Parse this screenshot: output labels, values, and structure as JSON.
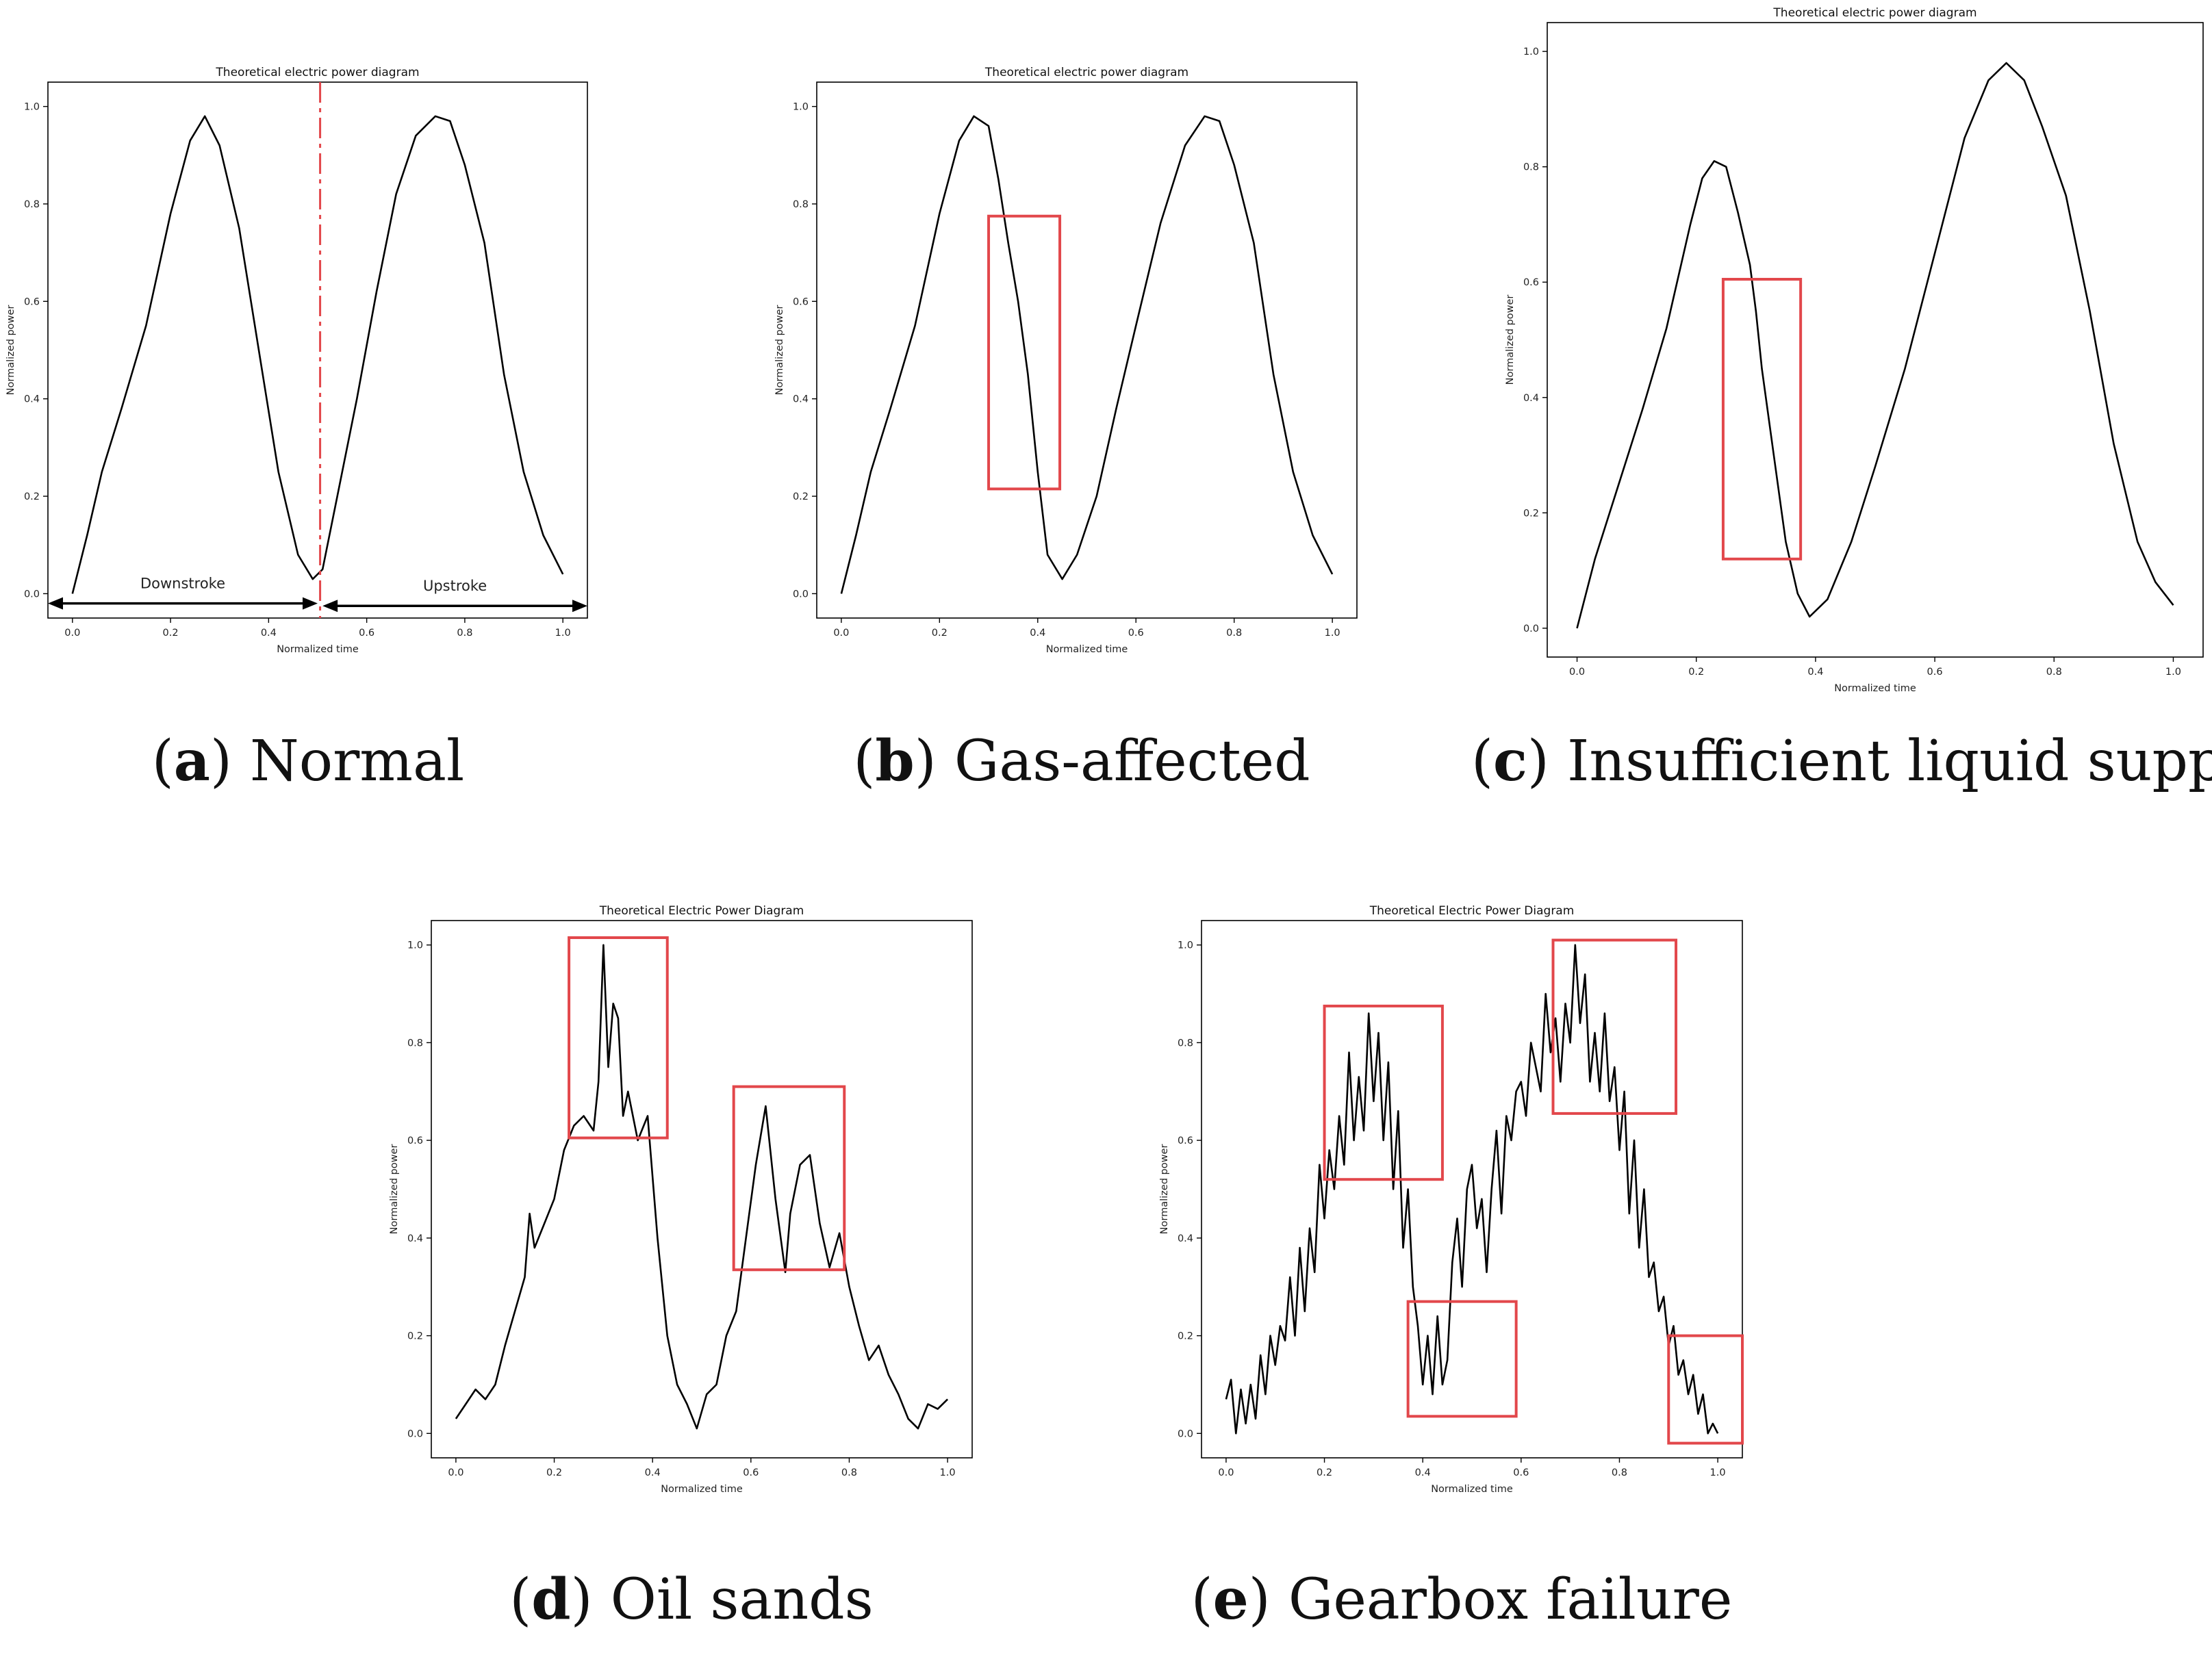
{
  "chart_data": [
    {
      "id": "a",
      "type": "line",
      "title": "Theoretical electric power diagram",
      "xlabel": "Normalized time",
      "ylabel": "Normalized power",
      "xlim": [
        -0.05,
        1.05
      ],
      "ylim": [
        -0.05,
        1.05
      ],
      "xticks": [
        0.0,
        0.2,
        0.4,
        0.6,
        0.8,
        1.0
      ],
      "yticks": [
        0.0,
        0.2,
        0.4,
        0.6,
        0.8,
        1.0
      ],
      "xtick_labels": [
        "0.0",
        "0.2",
        "0.4",
        "0.6",
        "0.8",
        "1.0"
      ],
      "ytick_labels": [
        "0.0",
        "0.2",
        "0.4",
        "0.6",
        "0.8",
        "1.0"
      ],
      "x": [
        0.0,
        0.03,
        0.06,
        0.1,
        0.15,
        0.2,
        0.24,
        0.27,
        0.3,
        0.34,
        0.38,
        0.42,
        0.46,
        0.49,
        0.51,
        0.54,
        0.58,
        0.62,
        0.66,
        0.7,
        0.74,
        0.77,
        0.8,
        0.84,
        0.88,
        0.92,
        0.96,
        1.0
      ],
      "y": [
        0.0,
        0.12,
        0.25,
        0.38,
        0.55,
        0.78,
        0.93,
        0.98,
        0.92,
        0.75,
        0.5,
        0.25,
        0.08,
        0.03,
        0.05,
        0.2,
        0.4,
        0.62,
        0.82,
        0.94,
        0.98,
        0.97,
        0.88,
        0.72,
        0.45,
        0.25,
        0.12,
        0.04
      ],
      "divider_x": 0.505,
      "annotations": [
        {
          "text": "Downstroke",
          "from": -0.05,
          "to": 0.5,
          "y": -0.02
        },
        {
          "text": "Upstroke",
          "from": 0.51,
          "to": 1.05,
          "y": -0.025
        }
      ],
      "caption_letter": "a",
      "caption_text": ") Normal"
    },
    {
      "id": "b",
      "type": "line",
      "title": "Theoretical electric power diagram",
      "xlabel": "Normalized time",
      "ylabel": "Normalized power",
      "xlim": [
        -0.05,
        1.05
      ],
      "ylim": [
        -0.05,
        1.05
      ],
      "xticks": [
        0.0,
        0.2,
        0.4,
        0.6,
        0.8,
        1.0
      ],
      "yticks": [
        0.0,
        0.2,
        0.4,
        0.6,
        0.8,
        1.0
      ],
      "xtick_labels": [
        "0.0",
        "0.2",
        "0.4",
        "0.6",
        "0.8",
        "1.0"
      ],
      "ytick_labels": [
        "0.0",
        "0.2",
        "0.4",
        "0.6",
        "0.8",
        "1.0"
      ],
      "x": [
        0.0,
        0.03,
        0.06,
        0.1,
        0.15,
        0.2,
        0.24,
        0.27,
        0.3,
        0.32,
        0.34,
        0.36,
        0.38,
        0.4,
        0.42,
        0.45,
        0.48,
        0.52,
        0.56,
        0.6,
        0.65,
        0.7,
        0.74,
        0.77,
        0.8,
        0.84,
        0.88,
        0.92,
        0.96,
        1.0
      ],
      "y": [
        0.0,
        0.12,
        0.25,
        0.38,
        0.55,
        0.78,
        0.93,
        0.98,
        0.96,
        0.85,
        0.72,
        0.6,
        0.45,
        0.25,
        0.08,
        0.03,
        0.08,
        0.2,
        0.38,
        0.55,
        0.76,
        0.92,
        0.98,
        0.97,
        0.88,
        0.72,
        0.45,
        0.25,
        0.12,
        0.04
      ],
      "highlight_boxes": [
        {
          "x": [
            0.3,
            0.445
          ],
          "y": [
            0.215,
            0.775
          ]
        }
      ],
      "caption_letter": "b",
      "caption_text": ") Gas-affected"
    },
    {
      "id": "c",
      "type": "line",
      "title": "Theoretical electric power diagram",
      "xlabel": "Normalized time",
      "ylabel": "Normalized power",
      "xlim": [
        -0.05,
        1.05
      ],
      "ylim": [
        -0.05,
        1.05
      ],
      "xticks": [
        0.0,
        0.2,
        0.4,
        0.6,
        0.8,
        1.0
      ],
      "yticks": [
        0.0,
        0.2,
        0.4,
        0.6,
        0.8,
        1.0
      ],
      "xtick_labels": [
        "0.0",
        "0.2",
        "0.4",
        "0.6",
        "0.8",
        "1.0"
      ],
      "ytick_labels": [
        "0.0",
        "0.2",
        "0.4",
        "0.6",
        "0.8",
        "1.0"
      ],
      "x": [
        0.0,
        0.03,
        0.07,
        0.11,
        0.15,
        0.19,
        0.21,
        0.23,
        0.25,
        0.27,
        0.29,
        0.3,
        0.31,
        0.33,
        0.35,
        0.37,
        0.39,
        0.42,
        0.46,
        0.5,
        0.55,
        0.6,
        0.65,
        0.69,
        0.72,
        0.75,
        0.78,
        0.82,
        0.86,
        0.9,
        0.94,
        0.97,
        1.0
      ],
      "y": [
        0.0,
        0.12,
        0.25,
        0.38,
        0.52,
        0.7,
        0.78,
        0.81,
        0.8,
        0.72,
        0.63,
        0.55,
        0.45,
        0.3,
        0.15,
        0.06,
        0.02,
        0.05,
        0.15,
        0.28,
        0.45,
        0.65,
        0.85,
        0.95,
        0.98,
        0.95,
        0.87,
        0.75,
        0.55,
        0.32,
        0.15,
        0.08,
        0.04
      ],
      "highlight_boxes": [
        {
          "x": [
            0.245,
            0.375
          ],
          "y": [
            0.12,
            0.605
          ]
        }
      ],
      "caption_letter": "c",
      "caption_text": ") Insufficient liquid supply"
    },
    {
      "id": "d",
      "type": "line",
      "title": "Theoretical Electric Power Diagram",
      "xlabel": "Normalized time",
      "ylabel": "Normalized power",
      "xlim": [
        -0.05,
        1.05
      ],
      "ylim": [
        -0.05,
        1.05
      ],
      "xticks": [
        0.0,
        0.2,
        0.4,
        0.6,
        0.8,
        1.0
      ],
      "yticks": [
        0.0,
        0.2,
        0.4,
        0.6,
        0.8,
        1.0
      ],
      "xtick_labels": [
        "0.0",
        "0.2",
        "0.4",
        "0.6",
        "0.8",
        "1.0"
      ],
      "ytick_labels": [
        "0.0",
        "0.2",
        "0.4",
        "0.6",
        "0.8",
        "1.0"
      ],
      "x": [
        0.0,
        0.02,
        0.04,
        0.06,
        0.08,
        0.1,
        0.12,
        0.14,
        0.15,
        0.16,
        0.18,
        0.2,
        0.22,
        0.24,
        0.26,
        0.28,
        0.29,
        0.3,
        0.31,
        0.32,
        0.33,
        0.34,
        0.35,
        0.37,
        0.39,
        0.41,
        0.43,
        0.45,
        0.47,
        0.49,
        0.51,
        0.53,
        0.55,
        0.57,
        0.59,
        0.61,
        0.63,
        0.65,
        0.67,
        0.68,
        0.7,
        0.72,
        0.74,
        0.76,
        0.78,
        0.8,
        0.82,
        0.84,
        0.86,
        0.88,
        0.9,
        0.92,
        0.94,
        0.96,
        0.98,
        1.0
      ],
      "y": [
        0.03,
        0.06,
        0.09,
        0.07,
        0.1,
        0.18,
        0.25,
        0.32,
        0.45,
        0.38,
        0.43,
        0.48,
        0.58,
        0.63,
        0.65,
        0.62,
        0.72,
        1.0,
        0.75,
        0.88,
        0.85,
        0.65,
        0.7,
        0.6,
        0.65,
        0.4,
        0.2,
        0.1,
        0.06,
        0.01,
        0.08,
        0.1,
        0.2,
        0.25,
        0.4,
        0.55,
        0.67,
        0.48,
        0.33,
        0.45,
        0.55,
        0.57,
        0.43,
        0.34,
        0.41,
        0.3,
        0.22,
        0.15,
        0.18,
        0.12,
        0.08,
        0.03,
        0.01,
        0.06,
        0.05,
        0.07
      ],
      "highlight_boxes": [
        {
          "x": [
            0.23,
            0.43
          ],
          "y": [
            0.605,
            1.015
          ]
        },
        {
          "x": [
            0.565,
            0.79
          ],
          "y": [
            0.335,
            0.71
          ]
        }
      ],
      "caption_letter": "d",
      "caption_text": ") Oil sands"
    },
    {
      "id": "e",
      "type": "line",
      "title": "Theoretical Electric Power Diagram",
      "xlabel": "Normalized time",
      "ylabel": "Normalized power",
      "xlim": [
        -0.05,
        1.05
      ],
      "ylim": [
        -0.05,
        1.05
      ],
      "xticks": [
        0.0,
        0.2,
        0.4,
        0.6,
        0.8,
        1.0
      ],
      "yticks": [
        0.0,
        0.2,
        0.4,
        0.6,
        0.8,
        1.0
      ],
      "xtick_labels": [
        "0.0",
        "0.2",
        "0.4",
        "0.6",
        "0.8",
        "1.0"
      ],
      "ytick_labels": [
        "0.0",
        "0.2",
        "0.4",
        "0.6",
        "0.8",
        "1.0"
      ],
      "x": [
        0.0,
        0.01,
        0.02,
        0.03,
        0.04,
        0.05,
        0.06,
        0.07,
        0.08,
        0.09,
        0.1,
        0.11,
        0.12,
        0.13,
        0.14,
        0.15,
        0.16,
        0.17,
        0.18,
        0.19,
        0.2,
        0.21,
        0.22,
        0.23,
        0.24,
        0.25,
        0.26,
        0.27,
        0.28,
        0.29,
        0.3,
        0.31,
        0.32,
        0.33,
        0.34,
        0.35,
        0.36,
        0.37,
        0.38,
        0.39,
        0.4,
        0.41,
        0.42,
        0.43,
        0.44,
        0.45,
        0.46,
        0.47,
        0.48,
        0.49,
        0.5,
        0.51,
        0.52,
        0.53,
        0.54,
        0.55,
        0.56,
        0.57,
        0.58,
        0.59,
        0.6,
        0.61,
        0.62,
        0.63,
        0.64,
        0.65,
        0.66,
        0.67,
        0.68,
        0.69,
        0.7,
        0.71,
        0.72,
        0.73,
        0.74,
        0.75,
        0.76,
        0.77,
        0.78,
        0.79,
        0.8,
        0.81,
        0.82,
        0.83,
        0.84,
        0.85,
        0.86,
        0.87,
        0.88,
        0.89,
        0.9,
        0.91,
        0.92,
        0.93,
        0.94,
        0.95,
        0.96,
        0.97,
        0.98,
        0.99,
        1.0
      ],
      "y": [
        0.07,
        0.11,
        0.0,
        0.09,
        0.02,
        0.1,
        0.03,
        0.16,
        0.08,
        0.2,
        0.14,
        0.22,
        0.19,
        0.32,
        0.2,
        0.38,
        0.25,
        0.42,
        0.33,
        0.55,
        0.44,
        0.58,
        0.5,
        0.65,
        0.55,
        0.78,
        0.6,
        0.73,
        0.62,
        0.86,
        0.68,
        0.82,
        0.6,
        0.76,
        0.5,
        0.66,
        0.38,
        0.5,
        0.3,
        0.22,
        0.1,
        0.2,
        0.08,
        0.24,
        0.1,
        0.15,
        0.35,
        0.44,
        0.3,
        0.5,
        0.55,
        0.42,
        0.48,
        0.33,
        0.5,
        0.62,
        0.45,
        0.65,
        0.6,
        0.7,
        0.72,
        0.65,
        0.8,
        0.75,
        0.7,
        0.9,
        0.78,
        0.85,
        0.72,
        0.88,
        0.8,
        1.0,
        0.84,
        0.94,
        0.72,
        0.82,
        0.7,
        0.86,
        0.68,
        0.75,
        0.58,
        0.7,
        0.45,
        0.6,
        0.38,
        0.5,
        0.32,
        0.35,
        0.25,
        0.28,
        0.18,
        0.22,
        0.12,
        0.15,
        0.08,
        0.12,
        0.04,
        0.08,
        0.0,
        0.02,
        0.0
      ],
      "highlight_boxes": [
        {
          "x": [
            0.2,
            0.44
          ],
          "y": [
            0.52,
            0.875
          ]
        },
        {
          "x": [
            0.37,
            0.59
          ],
          "y": [
            0.035,
            0.27
          ]
        },
        {
          "x": [
            0.665,
            0.915
          ],
          "y": [
            0.655,
            1.01
          ]
        },
        {
          "x": [
            0.9,
            1.05
          ],
          "y": [
            -0.02,
            0.2
          ]
        }
      ],
      "caption_letter": "e",
      "caption_text": ") Gearbox failure"
    }
  ],
  "caption_open_paren": "("
}
